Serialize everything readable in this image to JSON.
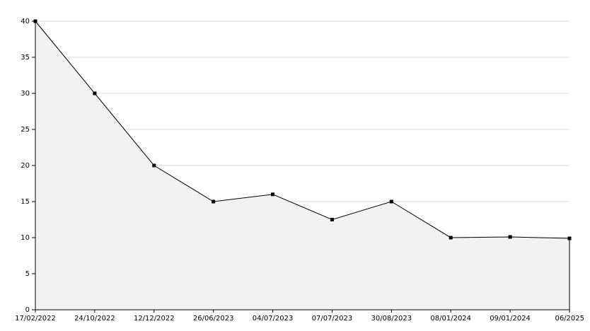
{
  "chart_data": {
    "type": "area",
    "categories": [
      "17/02/2022",
      "24/10/2022",
      "12/12/2022",
      "26/06/2023",
      "04/07/2023",
      "07/07/2023",
      "30/08/2023",
      "08/01/2024",
      "09/01/2024",
      "06/2025"
    ],
    "values": [
      40,
      30,
      20,
      15,
      16,
      12.5,
      15,
      10,
      10.1,
      9.9
    ],
    "color": "#000000",
    "fill": "#f2f2f2",
    "ylim": [
      0,
      40
    ],
    "yticks": [
      0,
      5,
      10,
      15,
      20,
      25,
      30,
      35,
      40
    ],
    "grid": true
  }
}
